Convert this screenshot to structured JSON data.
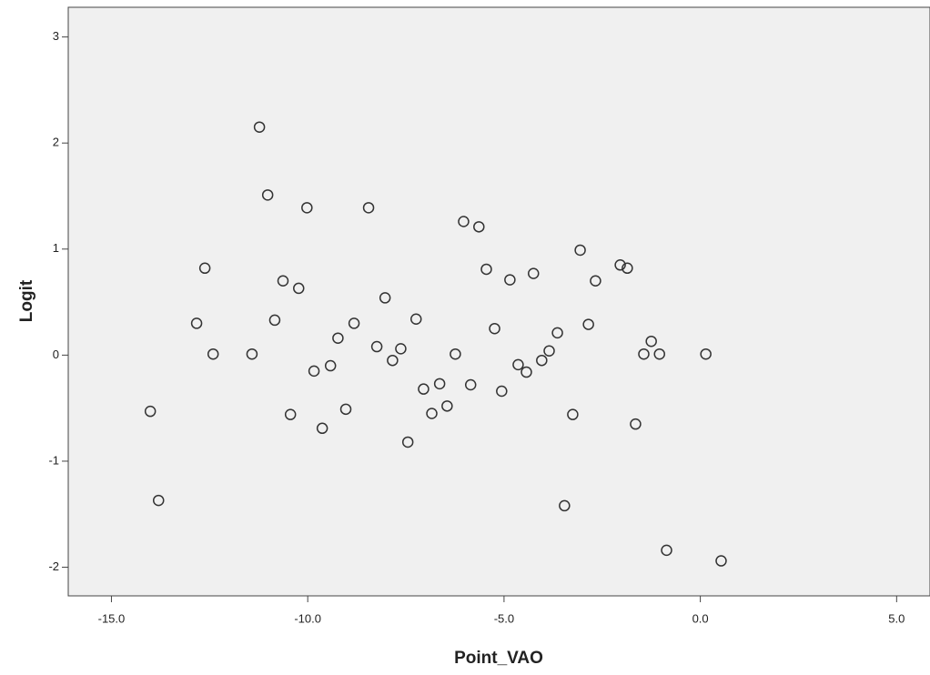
{
  "chart_data": {
    "type": "scatter",
    "x_label": "Point_VAO",
    "y_label": "Logit",
    "x": [
      -11.23,
      -11.02,
      -10.02,
      -8.45,
      -6.03,
      -5.64,
      -12.62,
      -10.63,
      -10.23,
      -5.45,
      -4.85,
      -4.25,
      -3.06,
      -2.04,
      -1.86,
      -2.67,
      -8.03,
      -12.83,
      -10.84,
      -8.82,
      -7.24,
      -5.24,
      -3.64,
      -2.85,
      -12.41,
      -11.42,
      -9.23,
      -8.24,
      -7.63,
      -7.84,
      -6.24,
      -3.85,
      -4.04,
      -4.64,
      -4.43,
      -1.44,
      -1.25,
      -1.04,
      0.14,
      -9.84,
      -9.42,
      -7.05,
      -6.64,
      -5.85,
      -5.06,
      -6.45,
      -6.84,
      -14.01,
      -10.44,
      -9.03,
      -9.63,
      -7.45,
      -3.25,
      -1.65,
      -13.8,
      -3.46,
      -0.86,
      0.53
    ],
    "y": [
      2.15,
      1.51,
      1.39,
      1.39,
      1.26,
      1.21,
      0.82,
      0.7,
      0.63,
      0.81,
      0.71,
      0.77,
      0.99,
      0.85,
      0.82,
      0.7,
      0.54,
      0.3,
      0.33,
      0.3,
      0.34,
      0.25,
      0.21,
      0.29,
      0.01,
      0.01,
      0.16,
      0.08,
      0.06,
      -0.05,
      0.01,
      0.04,
      -0.05,
      -0.09,
      -0.16,
      0.01,
      0.13,
      0.01,
      0.01,
      -0.15,
      -0.1,
      -0.32,
      -0.27,
      -0.28,
      -0.34,
      -0.48,
      -0.55,
      -0.53,
      -0.56,
      -0.51,
      -0.69,
      -0.82,
      -0.56,
      -0.65,
      -1.37,
      -1.42,
      -1.84,
      -1.94
    ],
    "color": "#333333",
    "xlim": [
      -16.1,
      5.85
    ],
    "ylim": [
      -2.27,
      3.28
    ],
    "xticks": [
      {
        "value": -15,
        "label": "-15.0"
      },
      {
        "value": -10,
        "label": "-10.0"
      },
      {
        "value": -5,
        "label": "-5.0"
      },
      {
        "value": 0,
        "label": "0.0"
      },
      {
        "value": 5,
        "label": "5.0"
      }
    ],
    "yticks": [
      -2,
      -1,
      0,
      1,
      2,
      3
    ]
  }
}
